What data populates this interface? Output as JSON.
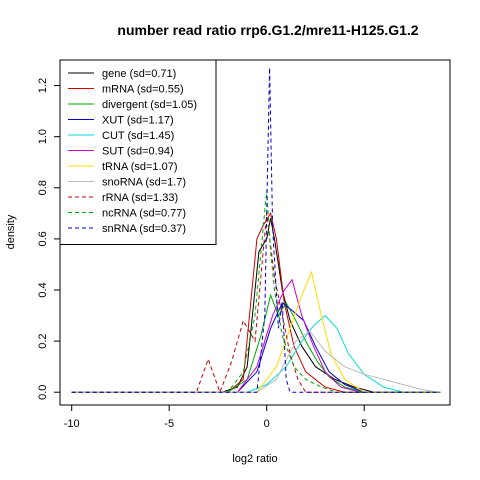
{
  "chart_data": {
    "type": "line",
    "title": "number read ratio rrp6.G1.2/mre11-H125.G1.2",
    "xlabel": "log2 ratio",
    "ylabel": "density",
    "xlim": [
      -10.6,
      9.4
    ],
    "ylim": [
      -0.05,
      1.3
    ],
    "x_ticks": [
      -10,
      -5,
      0,
      5
    ],
    "y_ticks": [
      0.0,
      0.2,
      0.4,
      0.6,
      0.8,
      1.0,
      1.2
    ],
    "x_tick_labels": [
      "-10",
      "-5",
      "0",
      "5"
    ],
    "y_tick_labels": [
      "0.0",
      "0.2",
      "0.4",
      "0.6",
      "0.8",
      "1.0",
      "1.2"
    ],
    "grid": false,
    "legend_position": "top-left",
    "series": [
      {
        "name": "gene (sd=0.71)",
        "color": "#000000",
        "dash": "solid",
        "x": [
          -2.3,
          -1.5,
          -1.0,
          -0.4,
          0.0,
          0.2,
          0.4,
          0.8,
          1.2,
          1.8,
          2.5,
          3.5,
          4.5,
          5.5
        ],
        "y": [
          0.0,
          0.02,
          0.1,
          0.55,
          0.6,
          0.68,
          0.6,
          0.4,
          0.28,
          0.18,
          0.1,
          0.05,
          0.02,
          0.0
        ]
      },
      {
        "name": "mRNA (sd=0.55)",
        "color": "#cc0000",
        "dash": "solid",
        "x": [
          -2.0,
          -1.2,
          -0.5,
          -0.2,
          0.2,
          0.5,
          0.9,
          1.4,
          2.0,
          3.0,
          4.0
        ],
        "y": [
          0.0,
          0.05,
          0.6,
          0.65,
          0.7,
          0.6,
          0.35,
          0.18,
          0.08,
          0.02,
          0.0
        ]
      },
      {
        "name": "divergent (sd=1.05)",
        "color": "#00aa00",
        "dash": "solid",
        "x": [
          -2.0,
          -1.0,
          -0.3,
          0.2,
          0.6,
          1.0,
          1.5,
          2.0,
          2.6,
          3.2,
          4.0,
          5.0
        ],
        "y": [
          0.0,
          0.05,
          0.22,
          0.38,
          0.3,
          0.35,
          0.28,
          0.2,
          0.12,
          0.06,
          0.02,
          0.0
        ]
      },
      {
        "name": "XUT (sd=1.17)",
        "color": "#0000cc",
        "dash": "solid",
        "x": [
          -1.5,
          -0.5,
          0.2,
          0.8,
          1.3,
          1.9,
          2.5,
          3.2,
          4.0,
          5.0
        ],
        "y": [
          0.0,
          0.08,
          0.25,
          0.35,
          0.32,
          0.28,
          0.18,
          0.08,
          0.03,
          0.0
        ]
      },
      {
        "name": "CUT (sd=1.45)",
        "color": "#00dddd",
        "dash": "solid",
        "x": [
          -1.0,
          0.0,
          1.0,
          1.8,
          2.4,
          3.0,
          3.6,
          4.2,
          5.0,
          6.0,
          7.0
        ],
        "y": [
          0.0,
          0.03,
          0.1,
          0.2,
          0.26,
          0.3,
          0.25,
          0.15,
          0.07,
          0.02,
          0.0
        ]
      },
      {
        "name": "SUT (sd=0.94)",
        "color": "#cc00cc",
        "dash": "solid",
        "x": [
          -1.5,
          -0.5,
          0.3,
          0.9,
          1.3,
          1.8,
          2.4,
          3.0,
          3.8,
          4.8
        ],
        "y": [
          0.0,
          0.1,
          0.3,
          0.4,
          0.44,
          0.3,
          0.18,
          0.08,
          0.02,
          0.0
        ]
      },
      {
        "name": "tRNA (sd=1.07)",
        "color": "#ffdd00",
        "dash": "solid",
        "x": [
          -0.5,
          0.5,
          1.2,
          1.8,
          2.3,
          2.8,
          3.3,
          4.0,
          5.0
        ],
        "y": [
          0.0,
          0.1,
          0.25,
          0.38,
          0.47,
          0.3,
          0.15,
          0.05,
          0.0
        ]
      },
      {
        "name": "snoRNA (sd=1.7)",
        "color": "#bbbbbb",
        "dash": "solid",
        "x": [
          -0.5,
          0.5,
          1.5,
          2.2,
          3.0,
          4.0,
          5.0,
          6.0,
          7.0,
          8.0,
          8.8
        ],
        "y": [
          0.0,
          0.05,
          0.2,
          0.24,
          0.16,
          0.1,
          0.07,
          0.05,
          0.03,
          0.01,
          0.0
        ]
      },
      {
        "name": "rRNA (sd=1.33)",
        "color": "#cc0000",
        "dash": "dashed",
        "x": [
          -3.6,
          -3.0,
          -2.4,
          -1.8,
          -1.2,
          -0.6,
          0.0,
          0.4,
          0.8,
          1.2,
          1.6,
          2.0
        ],
        "y": [
          0.0,
          0.13,
          0.0,
          0.12,
          0.28,
          0.2,
          0.7,
          0.45,
          0.3,
          0.15,
          0.05,
          0.0
        ]
      },
      {
        "name": "ncRNA (sd=0.77)",
        "color": "#00aa00",
        "dash": "dashed",
        "x": [
          -2.0,
          -1.2,
          -0.6,
          0.0,
          0.2,
          0.4,
          0.8,
          1.4,
          2.0,
          2.8,
          3.6
        ],
        "y": [
          0.0,
          0.08,
          0.3,
          0.79,
          0.55,
          0.4,
          0.22,
          0.1,
          0.05,
          0.02,
          0.0
        ]
      },
      {
        "name": "snRNA (sd=0.37)",
        "color": "#0000cc",
        "dash": "dashed",
        "x": [
          -0.5,
          -0.1,
          0.0,
          0.15,
          0.3,
          0.6,
          0.8,
          1.0,
          1.2,
          1.5
        ],
        "y": [
          0.0,
          0.3,
          0.7,
          1.27,
          0.65,
          0.25,
          0.35,
          0.05,
          0.0,
          0.0
        ]
      }
    ]
  }
}
